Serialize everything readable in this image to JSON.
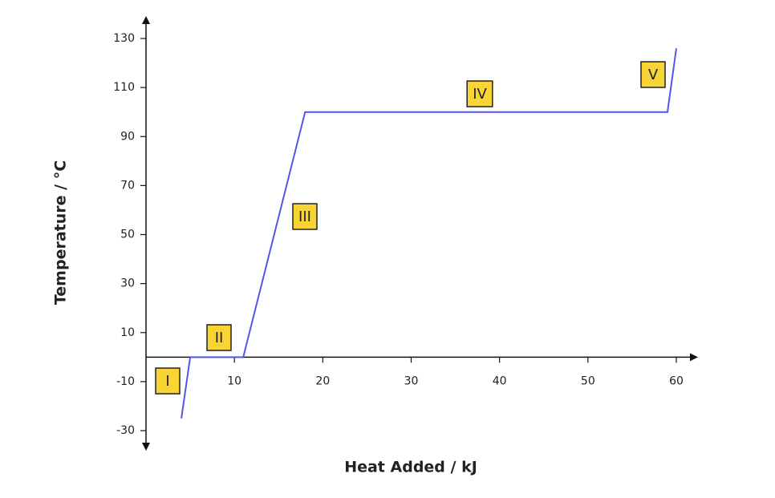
{
  "chart_data": {
    "type": "line",
    "x_label": "Heat Added / kJ",
    "y_label": "Temperature / °C",
    "x": [
      4,
      5,
      11,
      18,
      59,
      60
    ],
    "series": [
      {
        "color": "#5555ee",
        "values": [
          -25,
          0,
          0,
          100,
          100,
          126
        ]
      }
    ],
    "xlim": [
      0,
      60
    ],
    "xticks": [
      10,
      20,
      30,
      40,
      50,
      60
    ],
    "ylim": [
      -30,
      130
    ],
    "yticks": [
      -30,
      -10,
      10,
      30,
      50,
      70,
      90,
      110,
      130
    ],
    "annotations": [
      "I",
      "II",
      "III",
      "IV",
      "V"
    ]
  }
}
